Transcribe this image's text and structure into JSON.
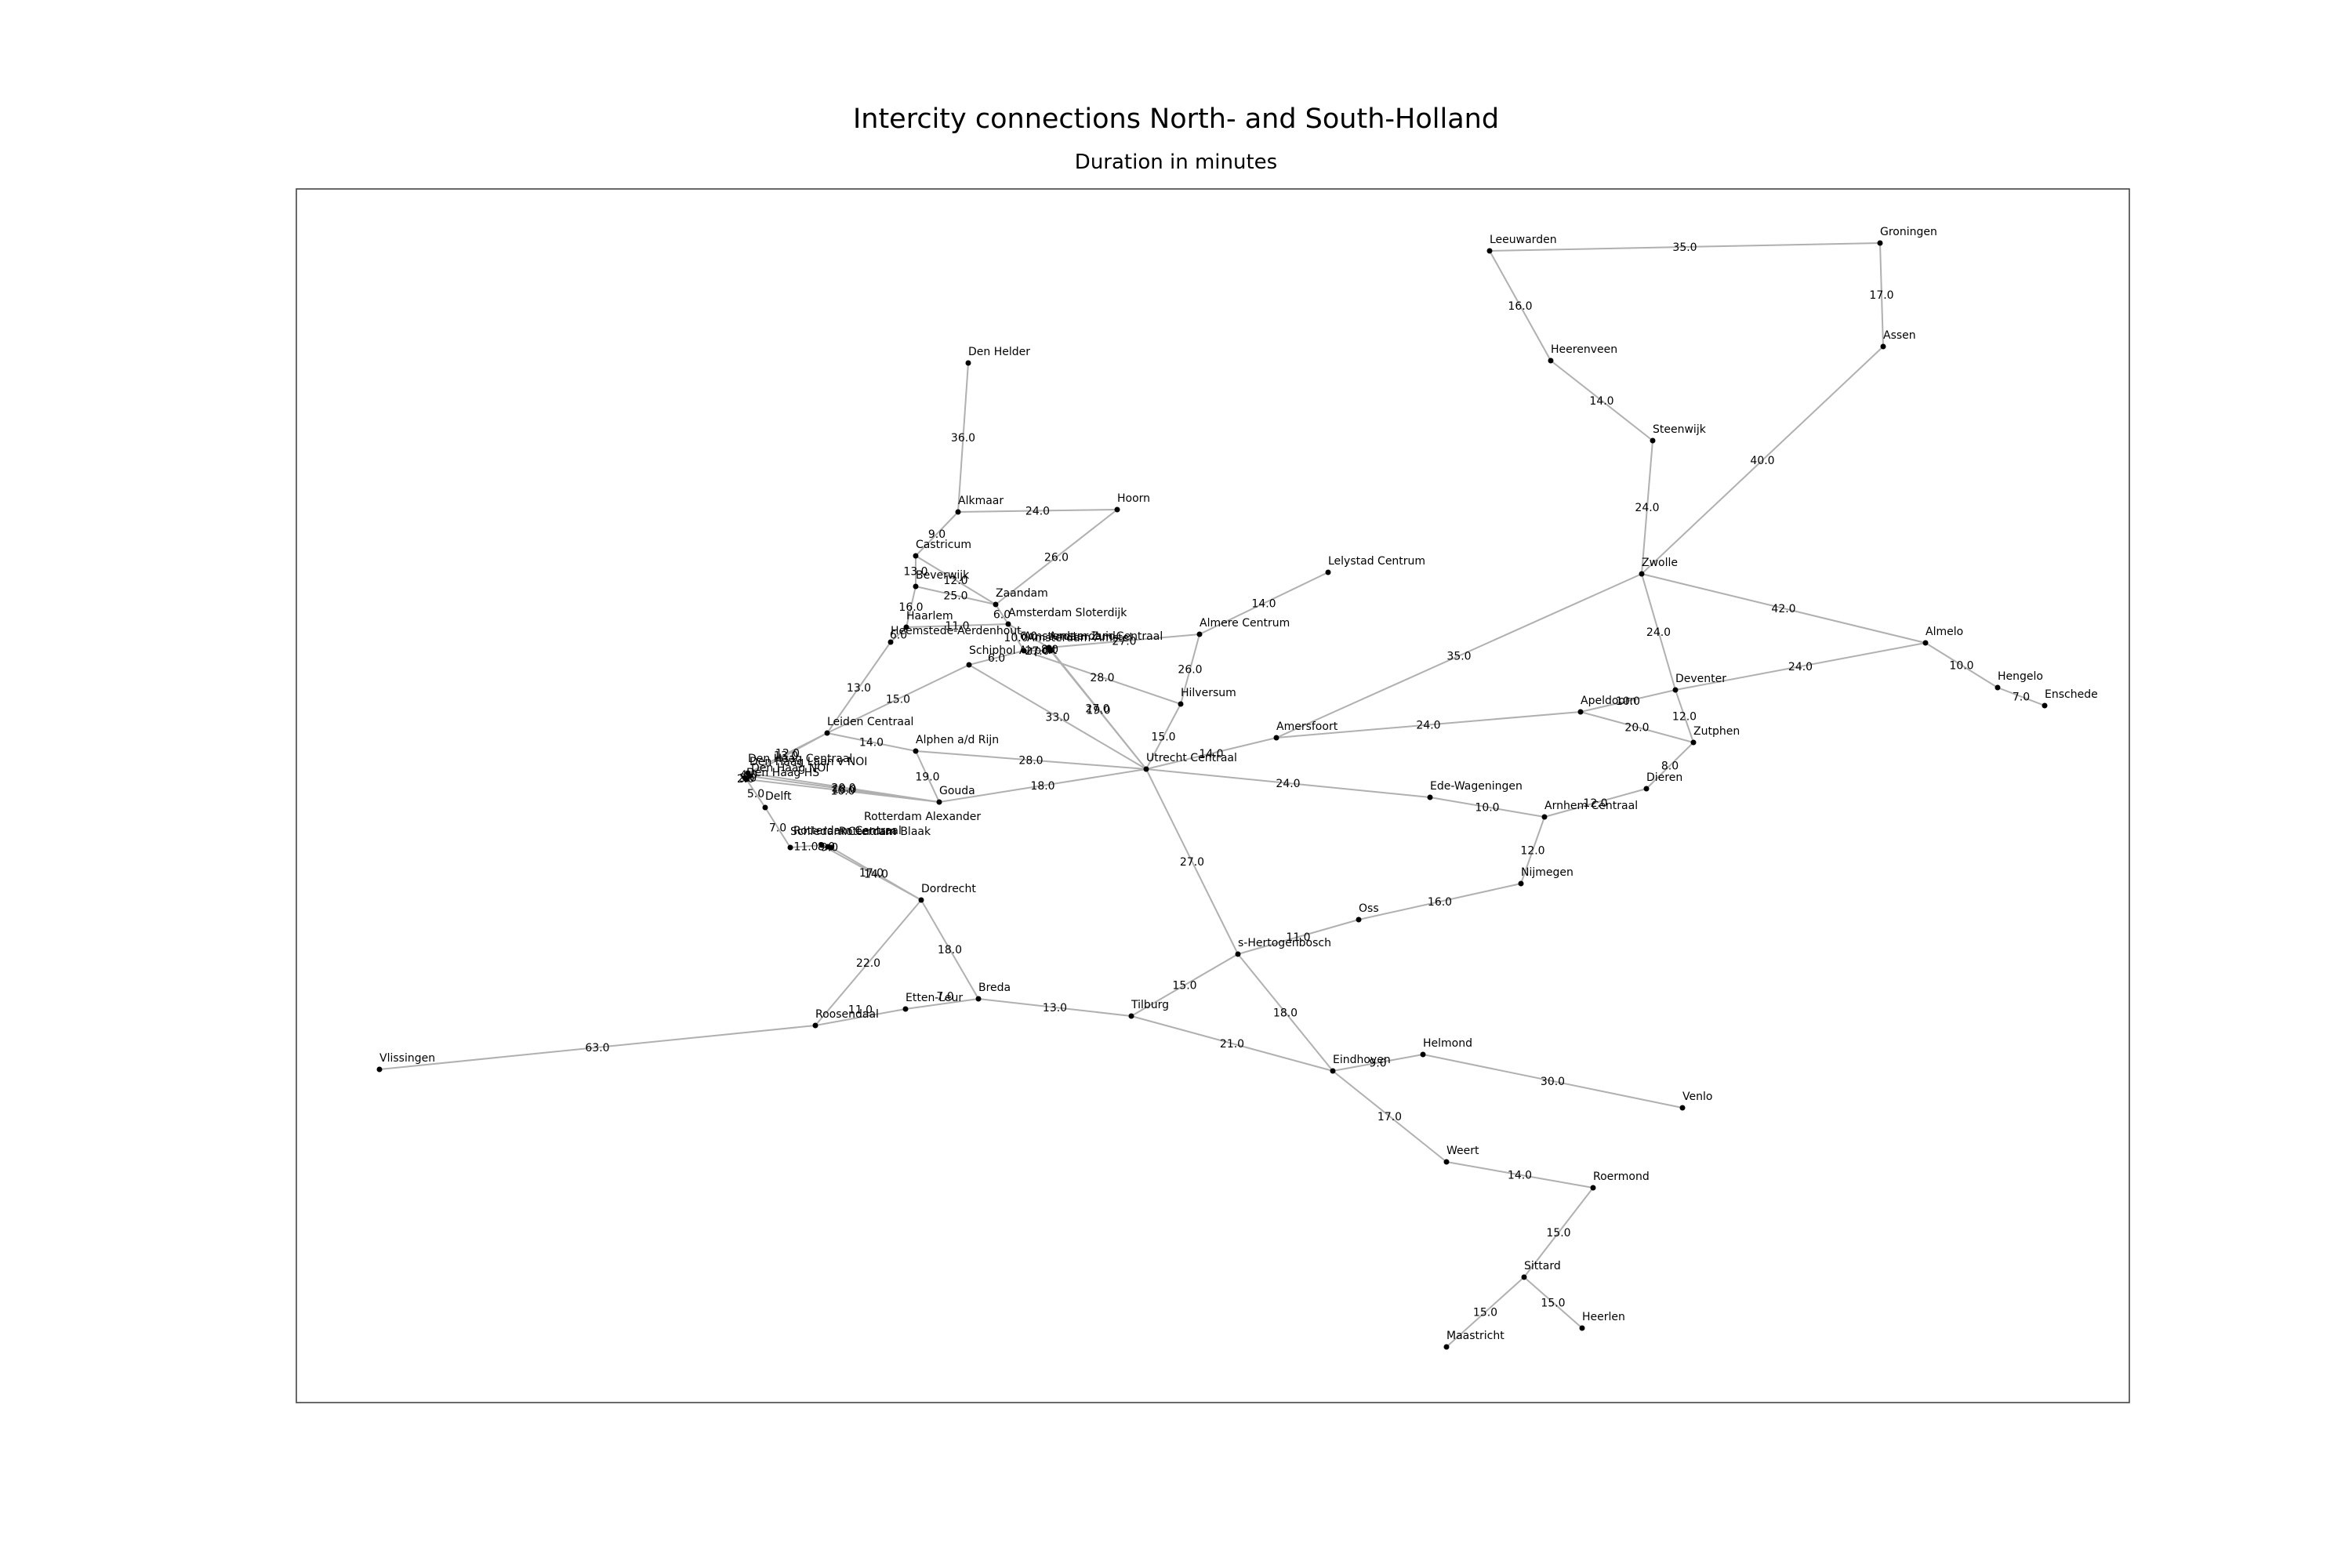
{
  "title": "Intercity connections North- and South-Holland",
  "subtitle": "Duration in minutes",
  "nodes": [
    {
      "id": "Groningen",
      "label": "Groningen"
    },
    {
      "id": "Leeuwarden",
      "label": "Leeuwarden"
    },
    {
      "id": "Assen",
      "label": "Assen"
    },
    {
      "id": "Heerenveen",
      "label": "Heerenveen"
    },
    {
      "id": "Steenwijk",
      "label": "Steenwijk"
    },
    {
      "id": "Zwolle",
      "label": "Zwolle"
    },
    {
      "id": "Almelo",
      "label": "Almelo"
    },
    {
      "id": "Hengelo",
      "label": "Hengelo"
    },
    {
      "id": "Enschede",
      "label": "Enschede"
    },
    {
      "id": "Deventer",
      "label": "Deventer"
    },
    {
      "id": "Apeldoorn",
      "label": "Apeldoorn"
    },
    {
      "id": "Zutphen",
      "label": "Zutphen"
    },
    {
      "id": "Dieren",
      "label": "Dieren"
    },
    {
      "id": "ArnhemCentraal",
      "label": "Arnhem Centraal"
    },
    {
      "id": "Nijmegen",
      "label": "Nijmegen"
    },
    {
      "id": "EdeWageningen",
      "label": "Ede-Wageningen"
    },
    {
      "id": "Amersfoort",
      "label": "Amersfoort"
    },
    {
      "id": "UtrechtCentraal",
      "label": "Utrecht Centraal"
    },
    {
      "id": "Hilversum",
      "label": "Hilversum"
    },
    {
      "id": "AlmereCentrum",
      "label": "Almere Centrum"
    },
    {
      "id": "LelystadCentrum",
      "label": "Lelystad Centrum"
    },
    {
      "id": "DenHelder",
      "label": "Den Helder"
    },
    {
      "id": "Alkmaar",
      "label": "Alkmaar"
    },
    {
      "id": "Hoorn",
      "label": "Hoorn"
    },
    {
      "id": "Castricum",
      "label": "Castricum"
    },
    {
      "id": "Beverwijk",
      "label": "Beverwijk"
    },
    {
      "id": "Zaandam",
      "label": "Zaandam"
    },
    {
      "id": "Haarlem",
      "label": "Haarlem"
    },
    {
      "id": "Heemstede",
      "label": "Heemstede-Aerdenhout"
    },
    {
      "id": "AmsterdamSloterdijk",
      "label": "Amsterdam Sloterdijk"
    },
    {
      "id": "AmsterdamCentraal",
      "label": "Amsterdam Centraal"
    },
    {
      "id": "AmsterdamAmstel",
      "label": "Amsterdam Amstel"
    },
    {
      "id": "AmsterdamZuid",
      "label": "Amsterdam Zuid"
    },
    {
      "id": "Schiphol",
      "label": "Schiphol Airport"
    },
    {
      "id": "LeidenCentraal",
      "label": "Leiden Centraal"
    },
    {
      "id": "Alphen",
      "label": "Alphen a/d Rijn"
    },
    {
      "id": "Gouda",
      "label": "Gouda"
    },
    {
      "id": "DenHaagCentraal",
      "label": "Den Haag Centraal"
    },
    {
      "id": "DenHaagNOI",
      "label": "Den Haag NOI"
    },
    {
      "id": "DenHaagHS",
      "label": "Den Haag HS"
    },
    {
      "id": "DenHaagLaan",
      "label": "Den Haag Laan v NOI"
    },
    {
      "id": "Delft",
      "label": "Delft"
    },
    {
      "id": "Schiedam",
      "label": "Schiedam Centrum"
    },
    {
      "id": "RotterdamCentraal",
      "label": "Rotterdam Centraal"
    },
    {
      "id": "RotterdamBlaak",
      "label": "Rotterdam Blaak"
    },
    {
      "id": "RotterdamAlexander",
      "label": "Rotterdam Alexander"
    },
    {
      "id": "Dordrecht",
      "label": "Dordrecht"
    },
    {
      "id": "Breda",
      "label": "Breda"
    },
    {
      "id": "EttenLeur",
      "label": "Etten-Leur"
    },
    {
      "id": "Roosendaal",
      "label": "Roosendaal"
    },
    {
      "id": "Vlissingen",
      "label": "Vlissingen"
    },
    {
      "id": "Tilburg",
      "label": "Tilburg"
    },
    {
      "id": "Hertogenbosch",
      "label": "s-Hertogenbosch"
    },
    {
      "id": "Oss",
      "label": "Oss"
    },
    {
      "id": "Eindhoven",
      "label": "Eindhoven"
    },
    {
      "id": "Helmond",
      "label": "Helmond"
    },
    {
      "id": "Venlo",
      "label": "Venlo"
    },
    {
      "id": "Weert",
      "label": "Weert"
    },
    {
      "id": "Roermond",
      "label": "Roermond"
    },
    {
      "id": "Sittard",
      "label": "Sittard"
    },
    {
      "id": "Maastricht",
      "label": "Maastricht"
    },
    {
      "id": "Heerlen",
      "label": "Heerlen"
    }
  ],
  "edges": [
    {
      "source": "Leeuwarden",
      "target": "Groningen",
      "label": "35.0"
    },
    {
      "source": "Groningen",
      "target": "Assen",
      "label": "17.0"
    },
    {
      "source": "Leeuwarden",
      "target": "Heerenveen",
      "label": "16.0"
    },
    {
      "source": "Heerenveen",
      "target": "Steenwijk",
      "label": "14.0"
    },
    {
      "source": "Steenwijk",
      "target": "Zwolle",
      "label": "24.0"
    },
    {
      "source": "Assen",
      "target": "Zwolle",
      "label": "40.0"
    },
    {
      "source": "Zwolle",
      "target": "Almelo",
      "label": "42.0"
    },
    {
      "source": "Almelo",
      "target": "Hengelo",
      "label": "10.0"
    },
    {
      "source": "Hengelo",
      "target": "Enschede",
      "label": "7.0"
    },
    {
      "source": "Zwolle",
      "target": "Deventer",
      "label": "24.0"
    },
    {
      "source": "Deventer",
      "target": "Almelo",
      "label": "24.0"
    },
    {
      "source": "Apeldoorn",
      "target": "Deventer",
      "label": "10.0"
    },
    {
      "source": "Deventer",
      "target": "Zutphen",
      "label": "12.0"
    },
    {
      "source": "Apeldoorn",
      "target": "Zutphen",
      "label": "20.0"
    },
    {
      "source": "Zutphen",
      "target": "Dieren",
      "label": "8.0"
    },
    {
      "source": "Dieren",
      "target": "ArnhemCentraal",
      "label": "12.0"
    },
    {
      "source": "ArnhemCentraal",
      "target": "Nijmegen",
      "label": "12.0"
    },
    {
      "source": "EdeWageningen",
      "target": "ArnhemCentraal",
      "label": "10.0"
    },
    {
      "source": "Amersfoort",
      "target": "Apeldoorn",
      "label": "24.0"
    },
    {
      "source": "Amersfoort",
      "target": "Zwolle",
      "label": "35.0"
    },
    {
      "source": "UtrechtCentraal",
      "target": "Amersfoort",
      "label": "14.0"
    },
    {
      "source": "UtrechtCentraal",
      "target": "EdeWageningen",
      "label": "24.0"
    },
    {
      "source": "Hilversum",
      "target": "UtrechtCentraal",
      "label": "15.0"
    },
    {
      "source": "AlmereCentrum",
      "target": "Hilversum",
      "label": "26.0"
    },
    {
      "source": "AlmereCentrum",
      "target": "LelystadCentrum",
      "label": "14.0"
    },
    {
      "source": "AmsterdamCentraal",
      "target": "AlmereCentrum",
      "label": "27.0"
    },
    {
      "source": "AmsterdamZuid",
      "target": "Hilversum",
      "label": "28.0"
    },
    {
      "source": "AmsterdamAmstel",
      "target": "UtrechtCentraal",
      "label": "19.0"
    },
    {
      "source": "AmsterdamCentraal",
      "target": "UtrechtCentraal",
      "label": "27.0"
    },
    {
      "source": "Schiphol",
      "target": "UtrechtCentraal",
      "label": "33.0"
    },
    {
      "source": "DenHelder",
      "target": "Alkmaar",
      "label": "36.0"
    },
    {
      "source": "Alkmaar",
      "target": "Hoorn",
      "label": "24.0"
    },
    {
      "source": "Hoorn",
      "target": "Zaandam",
      "label": "26.0"
    },
    {
      "source": "Alkmaar",
      "target": "Castricum",
      "label": "9.0"
    },
    {
      "source": "Castricum",
      "target": "Beverwijk",
      "label": "13.0"
    },
    {
      "source": "Castricum",
      "target": "Zaandam",
      "label": "12.0"
    },
    {
      "source": "Beverwijk",
      "target": "Zaandam",
      "label": "25.0"
    },
    {
      "source": "Beverwijk",
      "target": "Haarlem",
      "label": "16.0"
    },
    {
      "source": "Zaandam",
      "target": "AmsterdamSloterdijk",
      "label": "6.0"
    },
    {
      "source": "Haarlem",
      "target": "AmsterdamSloterdijk",
      "label": "11.0"
    },
    {
      "source": "Haarlem",
      "target": "Heemstede",
      "label": "6.0"
    },
    {
      "source": "AmsterdamSloterdijk",
      "target": "AmsterdamCentraal",
      "label": "6.0"
    },
    {
      "source": "AmsterdamCentraal",
      "target": "AmsterdamAmstel",
      "label": "8.0"
    },
    {
      "source": "AmsterdamSloterdijk",
      "target": "AmsterdamZuid",
      "label": "10.0"
    },
    {
      "source": "AmsterdamZuid",
      "target": "AmsterdamAmstel",
      "label": "27.0"
    },
    {
      "source": "Schiphol",
      "target": "AmsterdamZuid",
      "label": "6.0"
    },
    {
      "source": "Heemstede",
      "target": "LeidenCentraal",
      "label": "13.0"
    },
    {
      "source": "Schiphol",
      "target": "LeidenCentraal",
      "label": "15.0"
    },
    {
      "source": "LeidenCentraal",
      "target": "DenHaagCentraal",
      "label": "12.0"
    },
    {
      "source": "LeidenCentraal",
      "target": "DenHaagLaan",
      "label": "13.0"
    },
    {
      "source": "LeidenCentraal",
      "target": "Alphen",
      "label": "14.0"
    },
    {
      "source": "Alphen",
      "target": "UtrechtCentraal",
      "label": "28.0"
    },
    {
      "source": "Alphen",
      "target": "Gouda",
      "label": "19.0"
    },
    {
      "source": "Gouda",
      "target": "UtrechtCentraal",
      "label": "18.0"
    },
    {
      "source": "DenHaagCentraal",
      "target": "Gouda",
      "label": "20.0"
    },
    {
      "source": "DenHaagNOI",
      "target": "Gouda",
      "label": "18.0"
    },
    {
      "source": "DenHaagHS",
      "target": "Gouda",
      "label": "10.0"
    },
    {
      "source": "DenHaagCentraal",
      "target": "DenHaagNOI",
      "label": "4.0"
    },
    {
      "source": "DenHaagNOI",
      "target": "DenHaagHS",
      "label": "3.0"
    },
    {
      "source": "DenHaagHS",
      "target": "DenHaagLaan",
      "label": "2.0"
    },
    {
      "source": "DenHaagHS",
      "target": "Delft",
      "label": "5.0"
    },
    {
      "source": "Delft",
      "target": "Schiedam",
      "label": "7.0"
    },
    {
      "source": "Schiedam",
      "target": "RotterdamCentraal",
      "label": "11.0"
    },
    {
      "source": "RotterdamCentraal",
      "target": "RotterdamBlaak",
      "label": "8.0"
    },
    {
      "source": "RotterdamBlaak",
      "target": "RotterdamAlexander",
      "label": "9.0"
    },
    {
      "source": "RotterdamCentraal",
      "target": "Dordrecht",
      "label": "17.0"
    },
    {
      "source": "RotterdamBlaak",
      "target": "Dordrecht",
      "label": "14.0"
    },
    {
      "source": "Dordrecht",
      "target": "Roosendaal",
      "label": "22.0"
    },
    {
      "source": "Dordrecht",
      "target": "Breda",
      "label": "18.0"
    },
    {
      "source": "Roosendaal",
      "target": "EttenLeur",
      "label": "11.0"
    },
    {
      "source": "EttenLeur",
      "target": "Breda",
      "label": "7.0"
    },
    {
      "source": "Vlissingen",
      "target": "Roosendaal",
      "label": "63.0"
    },
    {
      "source": "Breda",
      "target": "Tilburg",
      "label": "13.0"
    },
    {
      "source": "Tilburg",
      "target": "Hertogenbosch",
      "label": "15.0"
    },
    {
      "source": "Tilburg",
      "target": "Eindhoven",
      "label": "21.0"
    },
    {
      "source": "UtrechtCentraal",
      "target": "Hertogenbosch",
      "label": "27.0"
    },
    {
      "source": "Hertogenbosch",
      "target": "Oss",
      "label": "11.0"
    },
    {
      "source": "Oss",
      "target": "Nijmegen",
      "label": "16.0"
    },
    {
      "source": "Hertogenbosch",
      "target": "Eindhoven",
      "label": "18.0"
    },
    {
      "source": "Eindhoven",
      "target": "Helmond",
      "label": "9.0"
    },
    {
      "source": "Helmond",
      "target": "Venlo",
      "label": "30.0"
    },
    {
      "source": "Eindhoven",
      "target": "Weert",
      "label": "17.0"
    },
    {
      "source": "Weert",
      "target": "Roermond",
      "label": "14.0"
    },
    {
      "source": "Roermond",
      "target": "Sittard",
      "label": "15.0"
    },
    {
      "source": "Sittard",
      "target": "Maastricht",
      "label": "15.0"
    },
    {
      "source": "Sittard",
      "target": "Heerlen",
      "label": "15.0"
    }
  ]
}
